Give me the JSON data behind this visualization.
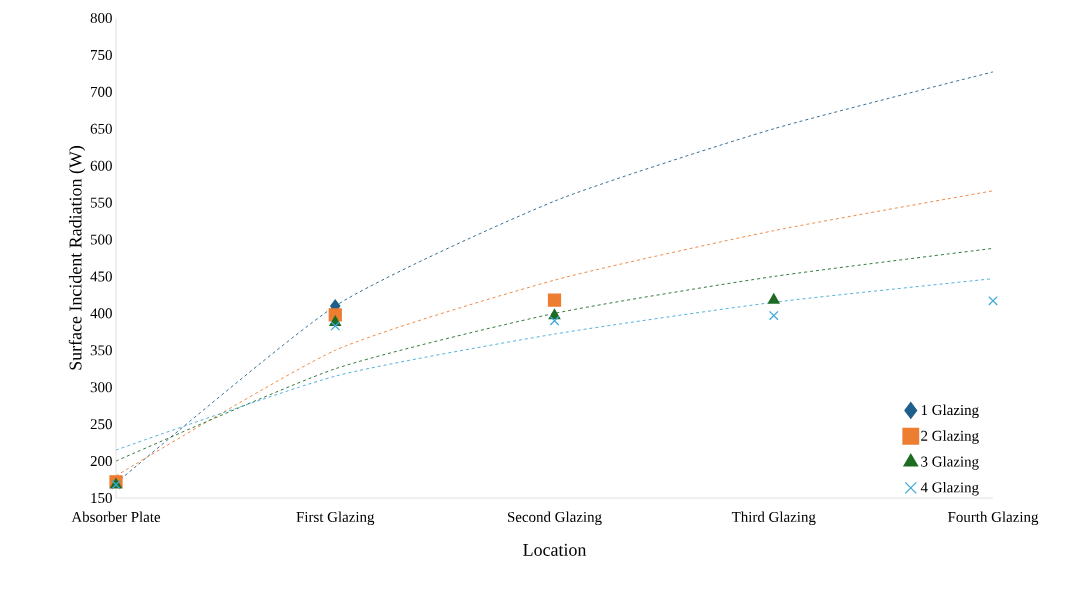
{
  "chart_data": {
    "type": "scatter",
    "xlabel": "Location",
    "ylabel": "Surface Incident Radiation (W)",
    "categories": [
      "Absorber Plate",
      "First Glazing",
      "Second Glazing",
      "Third Glazing",
      "Fourth Glazing"
    ],
    "ylim": [
      150,
      800
    ],
    "yticks": [
      150,
      200,
      250,
      300,
      350,
      400,
      450,
      500,
      550,
      600,
      650,
      700,
      750,
      800
    ],
    "legend": "right",
    "series": [
      {
        "name": "1 Glazing",
        "marker": "diamond",
        "color": "#1f5f8b",
        "values": [
          null,
          410,
          null,
          null,
          null
        ]
      },
      {
        "name": "2 Glazing",
        "marker": "square",
        "color": "#ed7d31",
        "values": [
          172,
          398,
          418,
          null,
          null
        ]
      },
      {
        "name": "3 Glazing",
        "marker": "triangle",
        "color": "#1e6b24",
        "values": [
          168,
          388,
          397,
          418,
          null
        ]
      },
      {
        "name": "4 Glazing",
        "marker": "cross",
        "color": "#3fa9d8",
        "values": [
          168,
          383,
          390,
          397,
          417
        ]
      },
      {
        "type": "line",
        "line_style": "dashed",
        "marker": "none",
        "color": "#1f5f8b",
        "values": [
          170,
          410,
          552,
          650,
          727
        ]
      },
      {
        "type": "line",
        "line_style": "dashed",
        "marker": "none",
        "color": "#ed7d31",
        "values": [
          180,
          350,
          445,
          512,
          566
        ]
      },
      {
        "type": "line",
        "line_style": "dashed",
        "marker": "none",
        "color": "#1e6b24",
        "values": [
          200,
          325,
          400,
          450,
          488
        ]
      },
      {
        "type": "line",
        "line_style": "dashed",
        "marker": "none",
        "color": "#3fa9d8",
        "values": [
          215,
          315,
          372,
          415,
          447
        ]
      }
    ]
  }
}
